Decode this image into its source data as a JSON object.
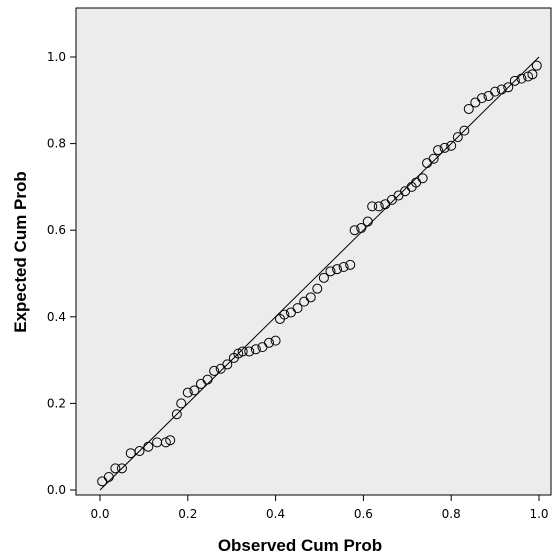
{
  "chart_data": {
    "type": "scatter",
    "title": "",
    "xlabel": "Observed Cum Prob",
    "ylabel": "Expected Cum Prob",
    "xlim": [
      0.0,
      1.0
    ],
    "ylim": [
      0.0,
      1.0
    ],
    "x_ticks": [
      "0.0",
      "0.2",
      "0.4",
      "0.6",
      "0.8",
      "1.0"
    ],
    "y_ticks": [
      "0.0",
      "0.2",
      "0.4",
      "0.6",
      "0.8",
      "1.0"
    ],
    "reference_line": {
      "x": [
        0.0,
        1.0
      ],
      "y": [
        0.0,
        1.0
      ]
    },
    "grid": false,
    "background_color": "#ececec",
    "marker_color": "#000000",
    "points": [
      [
        0.005,
        0.02
      ],
      [
        0.02,
        0.03
      ],
      [
        0.035,
        0.05
      ],
      [
        0.05,
        0.05
      ],
      [
        0.07,
        0.085
      ],
      [
        0.09,
        0.09
      ],
      [
        0.11,
        0.1
      ],
      [
        0.13,
        0.11
      ],
      [
        0.15,
        0.11
      ],
      [
        0.16,
        0.115
      ],
      [
        0.175,
        0.175
      ],
      [
        0.185,
        0.2
      ],
      [
        0.2,
        0.225
      ],
      [
        0.215,
        0.23
      ],
      [
        0.23,
        0.245
      ],
      [
        0.245,
        0.255
      ],
      [
        0.26,
        0.275
      ],
      [
        0.275,
        0.28
      ],
      [
        0.29,
        0.29
      ],
      [
        0.305,
        0.305
      ],
      [
        0.315,
        0.315
      ],
      [
        0.325,
        0.32
      ],
      [
        0.34,
        0.32
      ],
      [
        0.355,
        0.325
      ],
      [
        0.37,
        0.33
      ],
      [
        0.385,
        0.34
      ],
      [
        0.4,
        0.345
      ],
      [
        0.41,
        0.395
      ],
      [
        0.42,
        0.405
      ],
      [
        0.435,
        0.41
      ],
      [
        0.45,
        0.42
      ],
      [
        0.465,
        0.435
      ],
      [
        0.48,
        0.445
      ],
      [
        0.495,
        0.465
      ],
      [
        0.51,
        0.49
      ],
      [
        0.525,
        0.505
      ],
      [
        0.54,
        0.51
      ],
      [
        0.555,
        0.515
      ],
      [
        0.57,
        0.52
      ],
      [
        0.58,
        0.6
      ],
      [
        0.595,
        0.605
      ],
      [
        0.61,
        0.62
      ],
      [
        0.62,
        0.655
      ],
      [
        0.635,
        0.655
      ],
      [
        0.65,
        0.66
      ],
      [
        0.665,
        0.67
      ],
      [
        0.68,
        0.68
      ],
      [
        0.695,
        0.69
      ],
      [
        0.71,
        0.7
      ],
      [
        0.72,
        0.71
      ],
      [
        0.735,
        0.72
      ],
      [
        0.745,
        0.755
      ],
      [
        0.76,
        0.765
      ],
      [
        0.77,
        0.785
      ],
      [
        0.785,
        0.79
      ],
      [
        0.8,
        0.795
      ],
      [
        0.815,
        0.815
      ],
      [
        0.83,
        0.83
      ],
      [
        0.84,
        0.88
      ],
      [
        0.855,
        0.895
      ],
      [
        0.87,
        0.905
      ],
      [
        0.885,
        0.91
      ],
      [
        0.9,
        0.92
      ],
      [
        0.915,
        0.925
      ],
      [
        0.93,
        0.93
      ],
      [
        0.945,
        0.945
      ],
      [
        0.96,
        0.95
      ],
      [
        0.975,
        0.955
      ],
      [
        0.985,
        0.96
      ],
      [
        0.995,
        0.98
      ]
    ]
  }
}
